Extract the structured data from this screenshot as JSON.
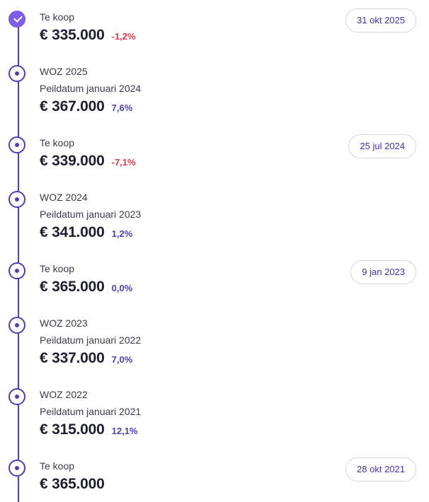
{
  "colors": {
    "accent": "#4b3fb5",
    "accent_check": "#7c5ce8",
    "negative": "#e0394a",
    "positive": "#4b3fb5"
  },
  "entries": [
    {
      "label": "Te koop",
      "sublabel": "",
      "price": "€ 335.000",
      "change": "-1,2%",
      "change_sign": "neg",
      "date": "31 okt 2025",
      "icon": "check-icon"
    },
    {
      "label": "WOZ 2025",
      "sublabel": "Peildatum januari 2024",
      "price": "€ 367.000",
      "change": "7,6%",
      "change_sign": "pos",
      "date": "",
      "icon": "dot-icon"
    },
    {
      "label": "Te koop",
      "sublabel": "",
      "price": "€ 339.000",
      "change": "-7,1%",
      "change_sign": "neg",
      "date": "25 jul 2024",
      "icon": "dot-icon"
    },
    {
      "label": "WOZ 2024",
      "sublabel": "Peildatum januari 2023",
      "price": "€ 341.000",
      "change": "1,2%",
      "change_sign": "pos",
      "date": "",
      "icon": "dot-icon"
    },
    {
      "label": "Te koop",
      "sublabel": "",
      "price": "€ 365.000",
      "change": "0,0%",
      "change_sign": "pos",
      "date": "9 jan 2023",
      "icon": "dot-icon"
    },
    {
      "label": "WOZ 2023",
      "sublabel": "Peildatum januari 2022",
      "price": "€ 337.000",
      "change": "7,0%",
      "change_sign": "pos",
      "date": "",
      "icon": "dot-icon"
    },
    {
      "label": "WOZ 2022",
      "sublabel": "Peildatum januari 2021",
      "price": "€ 315.000",
      "change": "12,1%",
      "change_sign": "pos",
      "date": "",
      "icon": "dot-icon"
    },
    {
      "label": "Te koop",
      "sublabel": "",
      "price": "€ 365.000",
      "change": "",
      "change_sign": "",
      "date": "28 okt 2021",
      "icon": "dot-icon"
    }
  ]
}
